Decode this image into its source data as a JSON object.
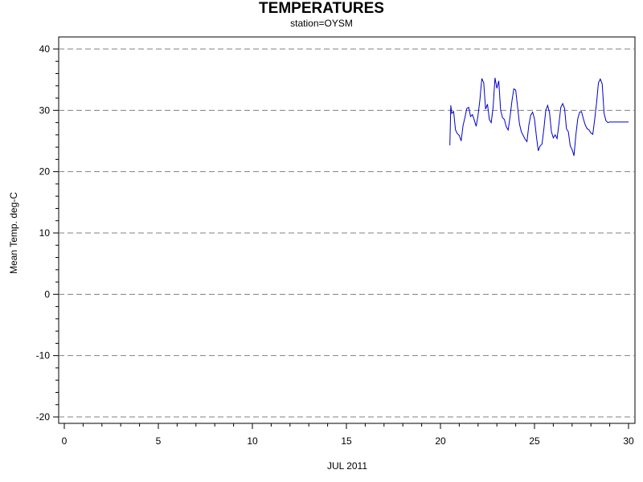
{
  "chart_data": {
    "type": "line",
    "title": "TEMPERATURES",
    "subtitle": "station=OYSM",
    "xlabel": "JUL 2011",
    "ylabel": "Mean Temp. deg-C",
    "xlim": [
      0,
      30
    ],
    "ylim": [
      -20,
      40
    ],
    "x_ticks": [
      0,
      5,
      10,
      15,
      20,
      25,
      30
    ],
    "y_ticks": [
      -20,
      -10,
      0,
      10,
      20,
      30,
      40
    ],
    "grid": "horizontal-dashed",
    "line_color": "#0000cc",
    "series": [
      {
        "x": [
          20.5,
          20.55,
          20.6,
          20.7,
          20.8,
          20.9,
          21.0,
          21.1,
          21.2,
          21.3,
          21.4,
          21.5,
          21.6,
          21.7,
          21.8,
          21.9,
          22.0,
          22.1,
          22.2,
          22.3,
          22.4,
          22.5,
          22.6,
          22.7,
          22.8,
          22.9,
          23.0,
          23.1,
          23.2,
          23.3,
          23.4,
          23.5,
          23.6,
          23.7,
          23.8,
          23.9,
          24.0,
          24.1,
          24.2,
          24.3,
          24.4,
          24.5,
          24.6,
          24.7,
          24.8,
          24.9,
          25.0,
          25.1,
          25.2,
          25.3,
          25.4,
          25.5,
          25.6,
          25.7,
          25.8,
          25.9,
          26.0,
          26.1,
          26.2,
          26.3,
          26.4,
          26.5,
          26.6,
          26.7,
          26.8,
          26.9,
          27.0,
          27.1,
          27.2,
          27.3,
          27.4,
          27.5,
          27.6,
          27.7,
          27.8,
          27.9,
          28.0,
          28.1,
          28.2,
          28.3,
          28.4,
          28.5,
          28.6,
          28.7,
          28.8,
          28.9,
          29.0,
          29.1,
          29.2,
          29.3,
          29.4,
          29.5,
          29.6,
          29.7,
          29.8,
          29.9,
          30.0
        ],
        "y": [
          24.3,
          30.8,
          29.5,
          29.8,
          26.8,
          26.2,
          25.9,
          25.0,
          27.5,
          28.8,
          30.3,
          30.5,
          29.0,
          29.3,
          28.4,
          27.4,
          29.2,
          31.8,
          35.2,
          34.5,
          30.2,
          31.0,
          28.5,
          28.0,
          30.5,
          35.3,
          33.6,
          34.8,
          30.0,
          28.8,
          28.5,
          27.3,
          26.8,
          28.9,
          31.5,
          33.5,
          33.3,
          30.6,
          27.8,
          26.5,
          25.9,
          25.3,
          24.9,
          27.6,
          29.2,
          29.7,
          28.6,
          25.8,
          23.4,
          24.2,
          24.5,
          27.0,
          30.0,
          30.8,
          29.6,
          26.5,
          25.5,
          26.0,
          25.4,
          27.8,
          30.5,
          31.1,
          30.3,
          27.0,
          26.5,
          24.2,
          23.6,
          22.6,
          26.0,
          28.6,
          29.7,
          29.8,
          28.6,
          27.6,
          27.0,
          26.8,
          26.3,
          26.1,
          28.5,
          31.2,
          34.5,
          35.1,
          34.3,
          29.5,
          28.3,
          28.0,
          28.1,
          28.1,
          28.1,
          28.1,
          28.1,
          28.1,
          28.1,
          28.1,
          28.1,
          28.1,
          28.1
        ]
      }
    ]
  }
}
